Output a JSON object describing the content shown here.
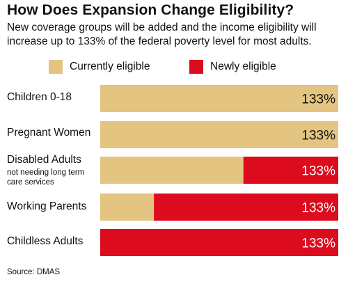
{
  "title": "How Does Expansion Change Eligibility?",
  "subtitle": "New coverage groups will be added and the income eligibility will increase up to 133% of the federal poverty level for most adults.",
  "source": "Source: DMAS",
  "colors": {
    "current": "#e3c581",
    "new": "#dc0c1e",
    "value_text": "#111111",
    "value_text_on_red": "#ffffff"
  },
  "chart_data": {
    "type": "bar",
    "orientation": "horizontal",
    "stacked": true,
    "value_max": 133,
    "categories": [
      "Children 0-18",
      "Pregnant Women",
      "Disabled Adults",
      "Working Parents",
      "Childless Adults"
    ],
    "category_notes": [
      "",
      "",
      "not needing long term care services",
      "",
      ""
    ],
    "series": [
      {
        "name": "Currently eligible",
        "values": [
          133,
          133,
          80,
          30,
          0
        ]
      },
      {
        "name": "Newly eligible",
        "values": [
          0,
          0,
          53,
          103,
          133
        ]
      }
    ],
    "value_labels": [
      "133%",
      "133%",
      "133%",
      "133%",
      "133%"
    ],
    "legend_position": "top",
    "grid": false
  }
}
